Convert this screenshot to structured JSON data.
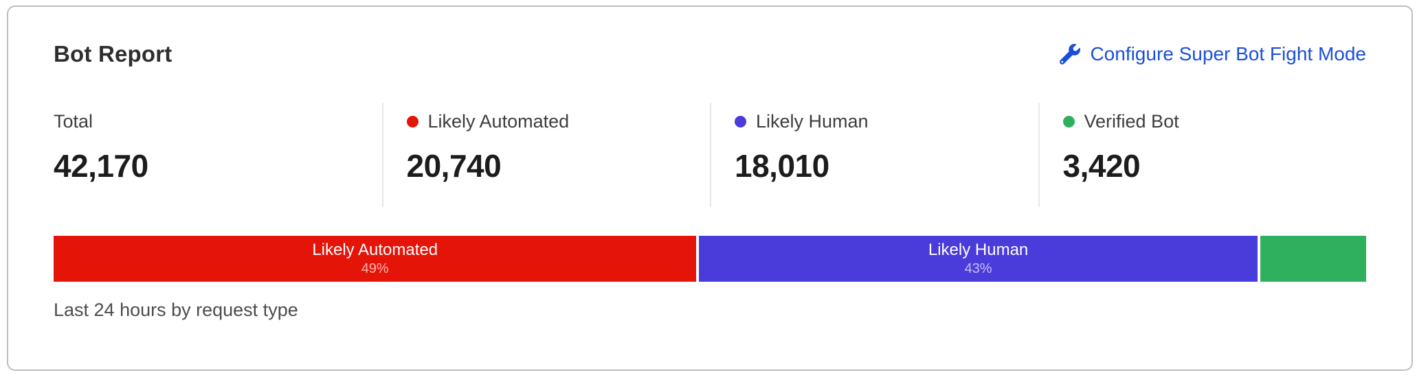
{
  "card": {
    "title": "Bot Report",
    "action": {
      "label": "Configure Super Bot Fight Mode",
      "icon": "wrench-icon",
      "color": "#1b4fd8"
    }
  },
  "stats": [
    {
      "label": "Total",
      "value": "42,170",
      "dot": null
    },
    {
      "label": "Likely Automated",
      "value": "20,740",
      "dot": "#e51408"
    },
    {
      "label": "Likely Human",
      "value": "18,010",
      "dot": "#4a3bdb"
    },
    {
      "label": "Verified Bot",
      "value": "3,420",
      "dot": "#2eb05e"
    }
  ],
  "bar": {
    "segments": [
      {
        "name": "Likely Automated",
        "percent_label": "49%",
        "percent": 49.18,
        "color": "#e51408"
      },
      {
        "name": "Likely Human",
        "percent_label": "43%",
        "percent": 42.71,
        "color": "#4a3bdb"
      },
      {
        "name": "",
        "percent_label": "",
        "percent": 8.11,
        "color": "#2eb05e"
      }
    ]
  },
  "caption": "Last 24 hours by request type",
  "chart_data": {
    "type": "bar",
    "subtype": "stacked-horizontal-percentage",
    "title": "Bot Report",
    "caption": "Last 24 hours by request type",
    "total": 42170,
    "categories": [
      "Likely Automated",
      "Likely Human",
      "Verified Bot"
    ],
    "values": [
      20740,
      18010,
      3420
    ],
    "percents": [
      49,
      43,
      8
    ],
    "colors": [
      "#e51408",
      "#4a3bdb",
      "#2eb05e"
    ],
    "legend_position": "top",
    "grid": false
  }
}
